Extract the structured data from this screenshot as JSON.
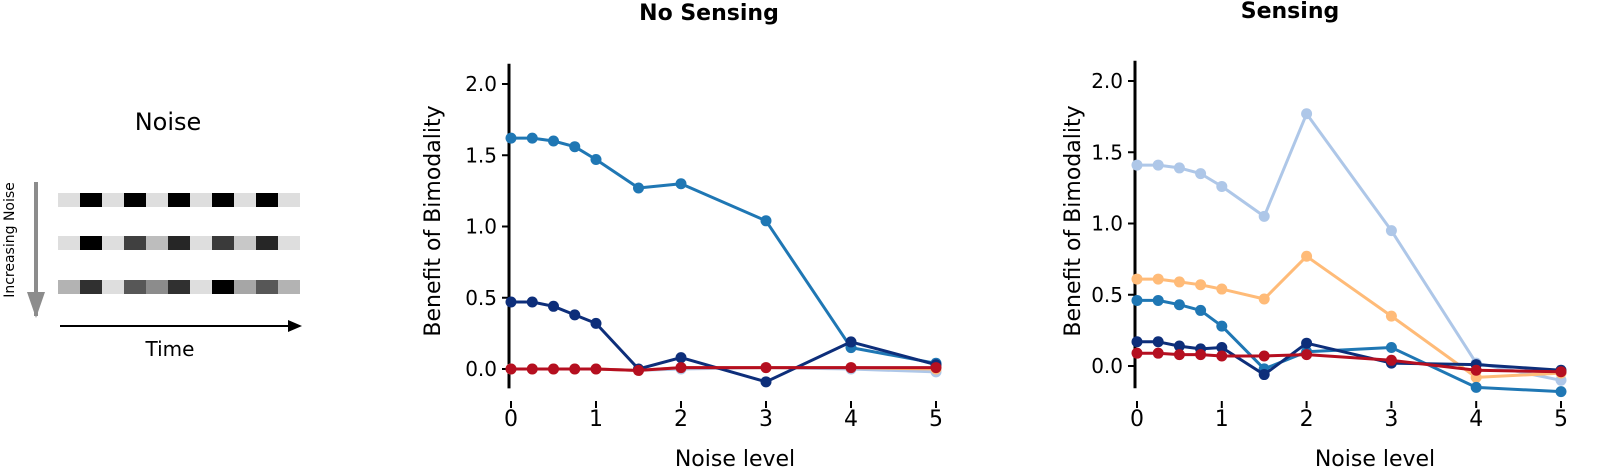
{
  "schematic": {
    "title": "Noise",
    "vertical_label": "Increasing Noise",
    "horizontal_label": "Time",
    "rows": [
      [
        "#dedede",
        "#000000",
        "#dedede",
        "#000000",
        "#dedede",
        "#000000",
        "#dedede",
        "#000000",
        "#dedede",
        "#000000",
        "#dedede"
      ],
      [
        "#dedede",
        "#000000",
        "#dedede",
        "#404040",
        "#bdbdbd",
        "#262626",
        "#dedede",
        "#3a3a3a",
        "#c8c8c8",
        "#262626",
        "#dedede"
      ],
      [
        "#b3b3b3",
        "#303030",
        "#dedede",
        "#575757",
        "#8c8c8c",
        "#303030",
        "#dedede",
        "#000000",
        "#a6a6a6",
        "#575757",
        "#b3b3b3"
      ]
    ]
  },
  "chart_data": [
    {
      "type": "line",
      "title": "No Sensing",
      "xlabel": "Noise level",
      "ylabel": "Benefit of Bimodality",
      "xlim": [
        0,
        5
      ],
      "ylim": [
        -0.08,
        2.1
      ],
      "xticks": [
        0,
        1,
        2,
        3,
        4,
        5
      ],
      "yticks": [
        0.0,
        0.5,
        1.0,
        1.5,
        2.0
      ],
      "ytick_labels": [
        "0.0",
        "0.5",
        "1.0",
        "1.5",
        "2.0"
      ],
      "grid": false,
      "x": [
        0,
        0.25,
        0.5,
        0.75,
        1,
        1.5,
        2,
        3,
        4,
        5
      ],
      "series": [
        {
          "color": "#aec7e8",
          "values": [
            0,
            0,
            0,
            0,
            0,
            -0.01,
            0.0,
            0.01,
            0.0,
            -0.02
          ]
        },
        {
          "color": "#ffbb78",
          "values": [
            0,
            0,
            0,
            0,
            0,
            -0.01,
            0.01,
            0.01,
            0.01,
            0.0
          ]
        },
        {
          "color": "#1f77b4",
          "values": [
            1.62,
            1.62,
            1.6,
            1.56,
            1.47,
            1.27,
            1.3,
            1.04,
            0.15,
            0.04
          ]
        },
        {
          "color": "#0d2e7a",
          "values": [
            0.47,
            0.47,
            0.44,
            0.38,
            0.32,
            0.0,
            0.08,
            -0.09,
            0.19,
            0.03
          ]
        },
        {
          "color": "#b50f20",
          "values": [
            0,
            0,
            0,
            0,
            0,
            -0.01,
            0.01,
            0.01,
            0.01,
            0.01
          ]
        }
      ]
    },
    {
      "type": "line",
      "title": "Sensing",
      "xlabel": "Noise level",
      "ylabel": "Benefit of Bimodality",
      "xlim": [
        0,
        5
      ],
      "ylim": [
        -0.1,
        2.1
      ],
      "xticks": [
        0,
        1,
        2,
        3,
        4,
        5
      ],
      "yticks": [
        0.0,
        0.5,
        1.0,
        1.5,
        2.0
      ],
      "ytick_labels": [
        "0.0",
        "0.5",
        "1.0",
        "1.5",
        "2.0"
      ],
      "grid": false,
      "x": [
        0,
        0.25,
        0.5,
        0.75,
        1,
        1.5,
        2,
        3,
        4,
        5
      ],
      "series": [
        {
          "color": "#aec7e8",
          "values": [
            1.41,
            1.41,
            1.39,
            1.35,
            1.26,
            1.05,
            1.77,
            0.95,
            0.02,
            -0.1
          ]
        },
        {
          "color": "#ffbb78",
          "values": [
            0.61,
            0.61,
            0.59,
            0.57,
            0.54,
            0.47,
            0.77,
            0.35,
            -0.08,
            -0.05
          ]
        },
        {
          "color": "#1f77b4",
          "values": [
            0.46,
            0.46,
            0.43,
            0.39,
            0.28,
            -0.02,
            0.1,
            0.13,
            -0.15,
            -0.18
          ]
        },
        {
          "color": "#0d2e7a",
          "values": [
            0.17,
            0.17,
            0.14,
            0.12,
            0.13,
            -0.06,
            0.16,
            0.02,
            0.01,
            -0.03
          ]
        },
        {
          "color": "#b50f20",
          "values": [
            0.09,
            0.09,
            0.08,
            0.08,
            0.07,
            0.07,
            0.08,
            0.04,
            -0.03,
            -0.04
          ]
        }
      ]
    }
  ]
}
